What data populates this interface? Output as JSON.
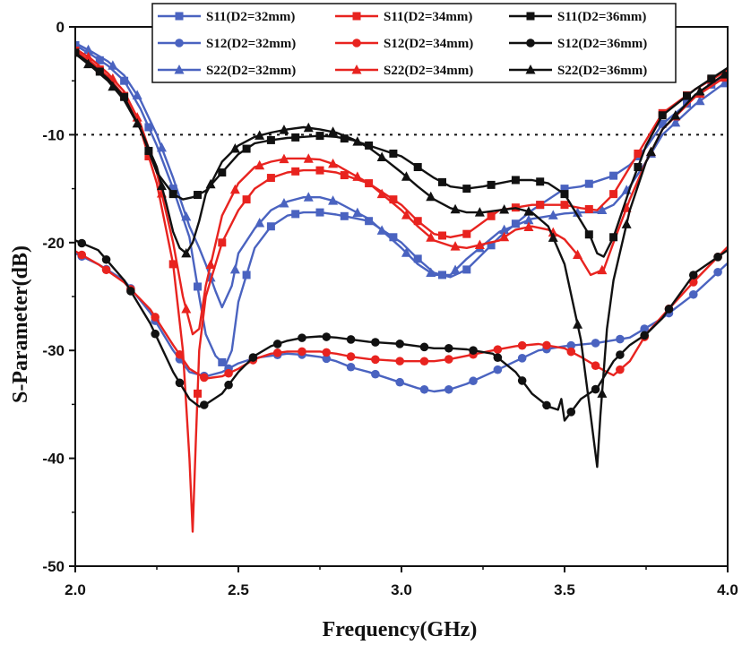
{
  "chart_data": {
    "type": "line",
    "xlabel": "Frequency(GHz)",
    "ylabel": "S-Parameter(dB)",
    "xlim": [
      2.0,
      4.0
    ],
    "ylim": [
      -50,
      0
    ],
    "xticks": [
      2.0,
      2.5,
      3.0,
      3.5,
      4.0
    ],
    "xtick_labels": [
      "2.0",
      "2.5",
      "3.0",
      "3.5",
      "4.0"
    ],
    "yticks": [
      0,
      -10,
      -20,
      -30,
      -40,
      -50
    ],
    "ytick_labels": [
      "0",
      "-10",
      "-20",
      "-30",
      "-40",
      "-50"
    ],
    "reference_line": -10,
    "legend_position": "top-right",
    "colors": {
      "blue": "#4a63c0",
      "red": "#e8231f",
      "black": "#111111"
    },
    "series": [
      {
        "name": "S11(D2=32mm)",
        "color": "blue",
        "marker": "square",
        "x": [
          2.0,
          2.05,
          2.1,
          2.15,
          2.2,
          2.25,
          2.3,
          2.35,
          2.38,
          2.4,
          2.43,
          2.46,
          2.48,
          2.5,
          2.55,
          2.6,
          2.65,
          2.7,
          2.75,
          2.8,
          2.9,
          3.0,
          3.05,
          3.1,
          3.15,
          3.2,
          3.3,
          3.4,
          3.5,
          3.55,
          3.6,
          3.65,
          3.7,
          3.75,
          3.8,
          3.9,
          4.0
        ],
        "y": [
          -1.7,
          -2.6,
          -3.6,
          -5,
          -7.6,
          -11,
          -15,
          -19.5,
          -25,
          -28.5,
          -30.5,
          -31.4,
          -30,
          -25.5,
          -20.5,
          -18.5,
          -17.5,
          -17.2,
          -17.2,
          -17.4,
          -18,
          -20,
          -21.5,
          -22.8,
          -23.2,
          -22.5,
          -19.5,
          -17,
          -15,
          -14.8,
          -14.3,
          -13.8,
          -12.8,
          -11.2,
          -9,
          -6.5,
          -4.2
        ]
      },
      {
        "name": "S12(D2=32mm)",
        "color": "blue",
        "marker": "circle",
        "x": [
          2.0,
          2.07,
          2.15,
          2.23,
          2.3,
          2.35,
          2.4,
          2.45,
          2.5,
          2.55,
          2.6,
          2.65,
          2.7,
          2.75,
          2.8,
          2.85,
          2.9,
          3.0,
          3.05,
          3.1,
          3.15,
          3.2,
          3.28,
          3.35,
          3.42,
          3.5,
          3.6,
          3.7,
          3.8,
          3.9,
          4.0
        ],
        "y": [
          -21,
          -22,
          -23.5,
          -26.5,
          -30,
          -32,
          -32.4,
          -32,
          -31.2,
          -30.7,
          -30.5,
          -30.3,
          -30.4,
          -30.6,
          -31,
          -31.6,
          -32,
          -33,
          -33.5,
          -33.8,
          -33.6,
          -33.1,
          -32,
          -31,
          -30,
          -29.6,
          -29.3,
          -28.8,
          -27,
          -24.7,
          -21.9
        ]
      },
      {
        "name": "S22(D2=32mm)",
        "color": "blue",
        "marker": "triangle",
        "x": [
          2.0,
          2.05,
          2.1,
          2.15,
          2.2,
          2.25,
          2.3,
          2.35,
          2.38,
          2.4,
          2.43,
          2.45,
          2.48,
          2.5,
          2.55,
          2.6,
          2.65,
          2.7,
          2.75,
          2.8,
          2.9,
          3.0,
          3.05,
          3.1,
          3.15,
          3.2,
          3.3,
          3.4,
          3.5,
          3.55,
          3.6,
          3.65,
          3.7,
          3.75,
          3.8,
          3.9,
          4.0
        ],
        "y": [
          -1.5,
          -2.3,
          -3.2,
          -4.5,
          -6.8,
          -10,
          -14,
          -18.5,
          -20.5,
          -22,
          -24.5,
          -26,
          -24,
          -21,
          -18.7,
          -17,
          -16.2,
          -15.8,
          -15.8,
          -16.2,
          -17.8,
          -20.5,
          -22,
          -23,
          -23,
          -21.5,
          -19,
          -17.8,
          -17.3,
          -17.2,
          -17.2,
          -16.5,
          -14.8,
          -12.5,
          -10,
          -7.2,
          -5
        ]
      },
      {
        "name": "S11(D2=34mm)",
        "color": "red",
        "marker": "square",
        "x": [
          2.0,
          2.05,
          2.1,
          2.15,
          2.2,
          2.25,
          2.3,
          2.33,
          2.35,
          2.36,
          2.37,
          2.38,
          2.4,
          2.45,
          2.5,
          2.55,
          2.6,
          2.65,
          2.7,
          2.75,
          2.8,
          2.9,
          3.0,
          3.05,
          3.1,
          3.15,
          3.2,
          3.3,
          3.4,
          3.5,
          3.55,
          3.6,
          3.65,
          3.7,
          3.75,
          3.8,
          3.9,
          4.0
        ],
        "y": [
          -2.2,
          -3.3,
          -4.6,
          -6.4,
          -9.5,
          -14.5,
          -22,
          -30,
          -40,
          -46.8,
          -38,
          -30,
          -25,
          -20,
          -17,
          -15,
          -14,
          -13.5,
          -13.3,
          -13.3,
          -13.5,
          -14.5,
          -16.5,
          -18,
          -19.2,
          -19.5,
          -19.2,
          -17,
          -16.5,
          -16.5,
          -16.8,
          -17,
          -15.5,
          -13,
          -10.5,
          -8,
          -5.8,
          -4
        ]
      },
      {
        "name": "S12(D2=34mm)",
        "color": "red",
        "marker": "circle",
        "x": [
          2.0,
          2.07,
          2.15,
          2.23,
          2.3,
          2.35,
          2.4,
          2.45,
          2.5,
          2.55,
          2.6,
          2.65,
          2.7,
          2.75,
          2.8,
          2.85,
          2.9,
          3.0,
          3.05,
          3.1,
          3.15,
          3.2,
          3.28,
          3.35,
          3.42,
          3.5,
          3.55,
          3.6,
          3.63,
          3.65,
          3.7,
          3.75,
          3.8,
          3.9,
          4.0
        ],
        "y": [
          -20.8,
          -22,
          -23.7,
          -26.2,
          -29.5,
          -31.7,
          -32.6,
          -32.4,
          -31.7,
          -30.8,
          -30.3,
          -30.1,
          -30.1,
          -30.1,
          -30.3,
          -30.6,
          -30.8,
          -31,
          -31,
          -31,
          -30.8,
          -30.5,
          -30,
          -29.6,
          -29.4,
          -29.8,
          -30.6,
          -31.5,
          -32,
          -32.3,
          -31,
          -28.5,
          -26.8,
          -23.5,
          -20.4
        ]
      },
      {
        "name": "S22(D2=34mm)",
        "color": "red",
        "marker": "triangle",
        "x": [
          2.0,
          2.05,
          2.1,
          2.15,
          2.2,
          2.25,
          2.3,
          2.33,
          2.36,
          2.38,
          2.4,
          2.45,
          2.5,
          2.55,
          2.6,
          2.65,
          2.7,
          2.75,
          2.8,
          2.9,
          3.0,
          3.05,
          3.1,
          3.15,
          3.2,
          3.3,
          3.35,
          3.4,
          3.45,
          3.5,
          3.55,
          3.58,
          3.62,
          3.65,
          3.7,
          3.75,
          3.8,
          3.9,
          4.0
        ],
        "y": [
          -2,
          -3,
          -4.3,
          -6,
          -9,
          -13.5,
          -20,
          -25,
          -28.5,
          -28,
          -24,
          -17.5,
          -14.5,
          -13,
          -12.5,
          -12.2,
          -12.2,
          -12.3,
          -12.8,
          -14.5,
          -17,
          -18.5,
          -19.8,
          -20.3,
          -20.5,
          -19.8,
          -18.8,
          -18.5,
          -18.8,
          -19.7,
          -21.5,
          -23,
          -22.5,
          -20,
          -16,
          -12.5,
          -9.5,
          -6.5,
          -4.5
        ]
      },
      {
        "name": "S11(D2=36mm)",
        "color": "black",
        "marker": "square",
        "x": [
          2.0,
          2.05,
          2.1,
          2.15,
          2.2,
          2.25,
          2.3,
          2.33,
          2.36,
          2.38,
          2.4,
          2.45,
          2.5,
          2.55,
          2.6,
          2.65,
          2.7,
          2.75,
          2.8,
          2.85,
          2.9,
          3.0,
          3.05,
          3.1,
          3.15,
          3.2,
          3.25,
          3.3,
          3.35,
          3.4,
          3.45,
          3.5,
          3.55,
          3.58,
          3.6,
          3.62,
          3.65,
          3.7,
          3.75,
          3.8,
          3.9,
          4.0
        ],
        "y": [
          -2.4,
          -3.5,
          -4.8,
          -6.5,
          -9.5,
          -13.5,
          -15.5,
          -16,
          -15.8,
          -15.5,
          -15.2,
          -13.5,
          -11.8,
          -10.8,
          -10.5,
          -10.3,
          -10.2,
          -10.1,
          -10.2,
          -10.5,
          -11,
          -12,
          -13,
          -14,
          -14.8,
          -15,
          -14.8,
          -14.5,
          -14.2,
          -14.2,
          -14.5,
          -15.5,
          -18,
          -19.5,
          -21,
          -21.3,
          -19.5,
          -15,
          -11,
          -8.2,
          -5.8,
          -3.8
        ]
      },
      {
        "name": "S12(D2=36mm)",
        "color": "black",
        "marker": "circle",
        "x": [
          2.0,
          2.07,
          2.15,
          2.23,
          2.3,
          2.35,
          2.38,
          2.4,
          2.45,
          2.5,
          2.55,
          2.6,
          2.65,
          2.7,
          2.75,
          2.8,
          2.9,
          3.0,
          3.05,
          3.1,
          3.15,
          3.2,
          3.28,
          3.35,
          3.4,
          3.45,
          3.48,
          3.49,
          3.5,
          3.55,
          3.6,
          3.65,
          3.7,
          3.75,
          3.8,
          3.9,
          4.0
        ],
        "y": [
          -19.8,
          -20.7,
          -23.5,
          -27.5,
          -32,
          -34.5,
          -35.2,
          -35,
          -34,
          -32,
          -30.5,
          -29.6,
          -29.1,
          -28.8,
          -28.7,
          -28.8,
          -29.2,
          -29.4,
          -29.6,
          -29.8,
          -29.8,
          -29.9,
          -30.3,
          -32,
          -34,
          -35.2,
          -35.5,
          -34.5,
          -36.5,
          -34.5,
          -33.5,
          -31,
          -29.5,
          -28.5,
          -27,
          -22.8,
          -20.7
        ]
      },
      {
        "name": "S22(D2=36mm)",
        "color": "black",
        "marker": "triangle",
        "x": [
          2.0,
          2.05,
          2.1,
          2.15,
          2.2,
          2.25,
          2.28,
          2.3,
          2.32,
          2.34,
          2.36,
          2.38,
          2.4,
          2.45,
          2.5,
          2.55,
          2.6,
          2.65,
          2.7,
          2.75,
          2.8,
          2.85,
          2.9,
          2.95,
          3.0,
          3.05,
          3.1,
          3.15,
          3.2,
          3.25,
          3.3,
          3.35,
          3.4,
          3.45,
          3.5,
          3.55,
          3.58,
          3.6,
          3.61,
          3.63,
          3.65,
          3.7,
          3.75,
          3.8,
          3.9,
          4.0
        ],
        "y": [
          -2.5,
          -3.7,
          -5,
          -6.8,
          -9.5,
          -13,
          -16.5,
          -19,
          -20.5,
          -21,
          -20,
          -18,
          -15.5,
          -12.5,
          -11,
          -10.2,
          -9.8,
          -9.5,
          -9.3,
          -9.5,
          -9.8,
          -10.4,
          -11.2,
          -12.3,
          -13.5,
          -14.8,
          -16,
          -16.8,
          -17.2,
          -17.2,
          -17,
          -16.8,
          -17.2,
          -18.5,
          -22,
          -29,
          -36,
          -40.8,
          -36,
          -28,
          -23.5,
          -17,
          -12.5,
          -9.5,
          -6.3,
          -4.2
        ]
      }
    ]
  }
}
